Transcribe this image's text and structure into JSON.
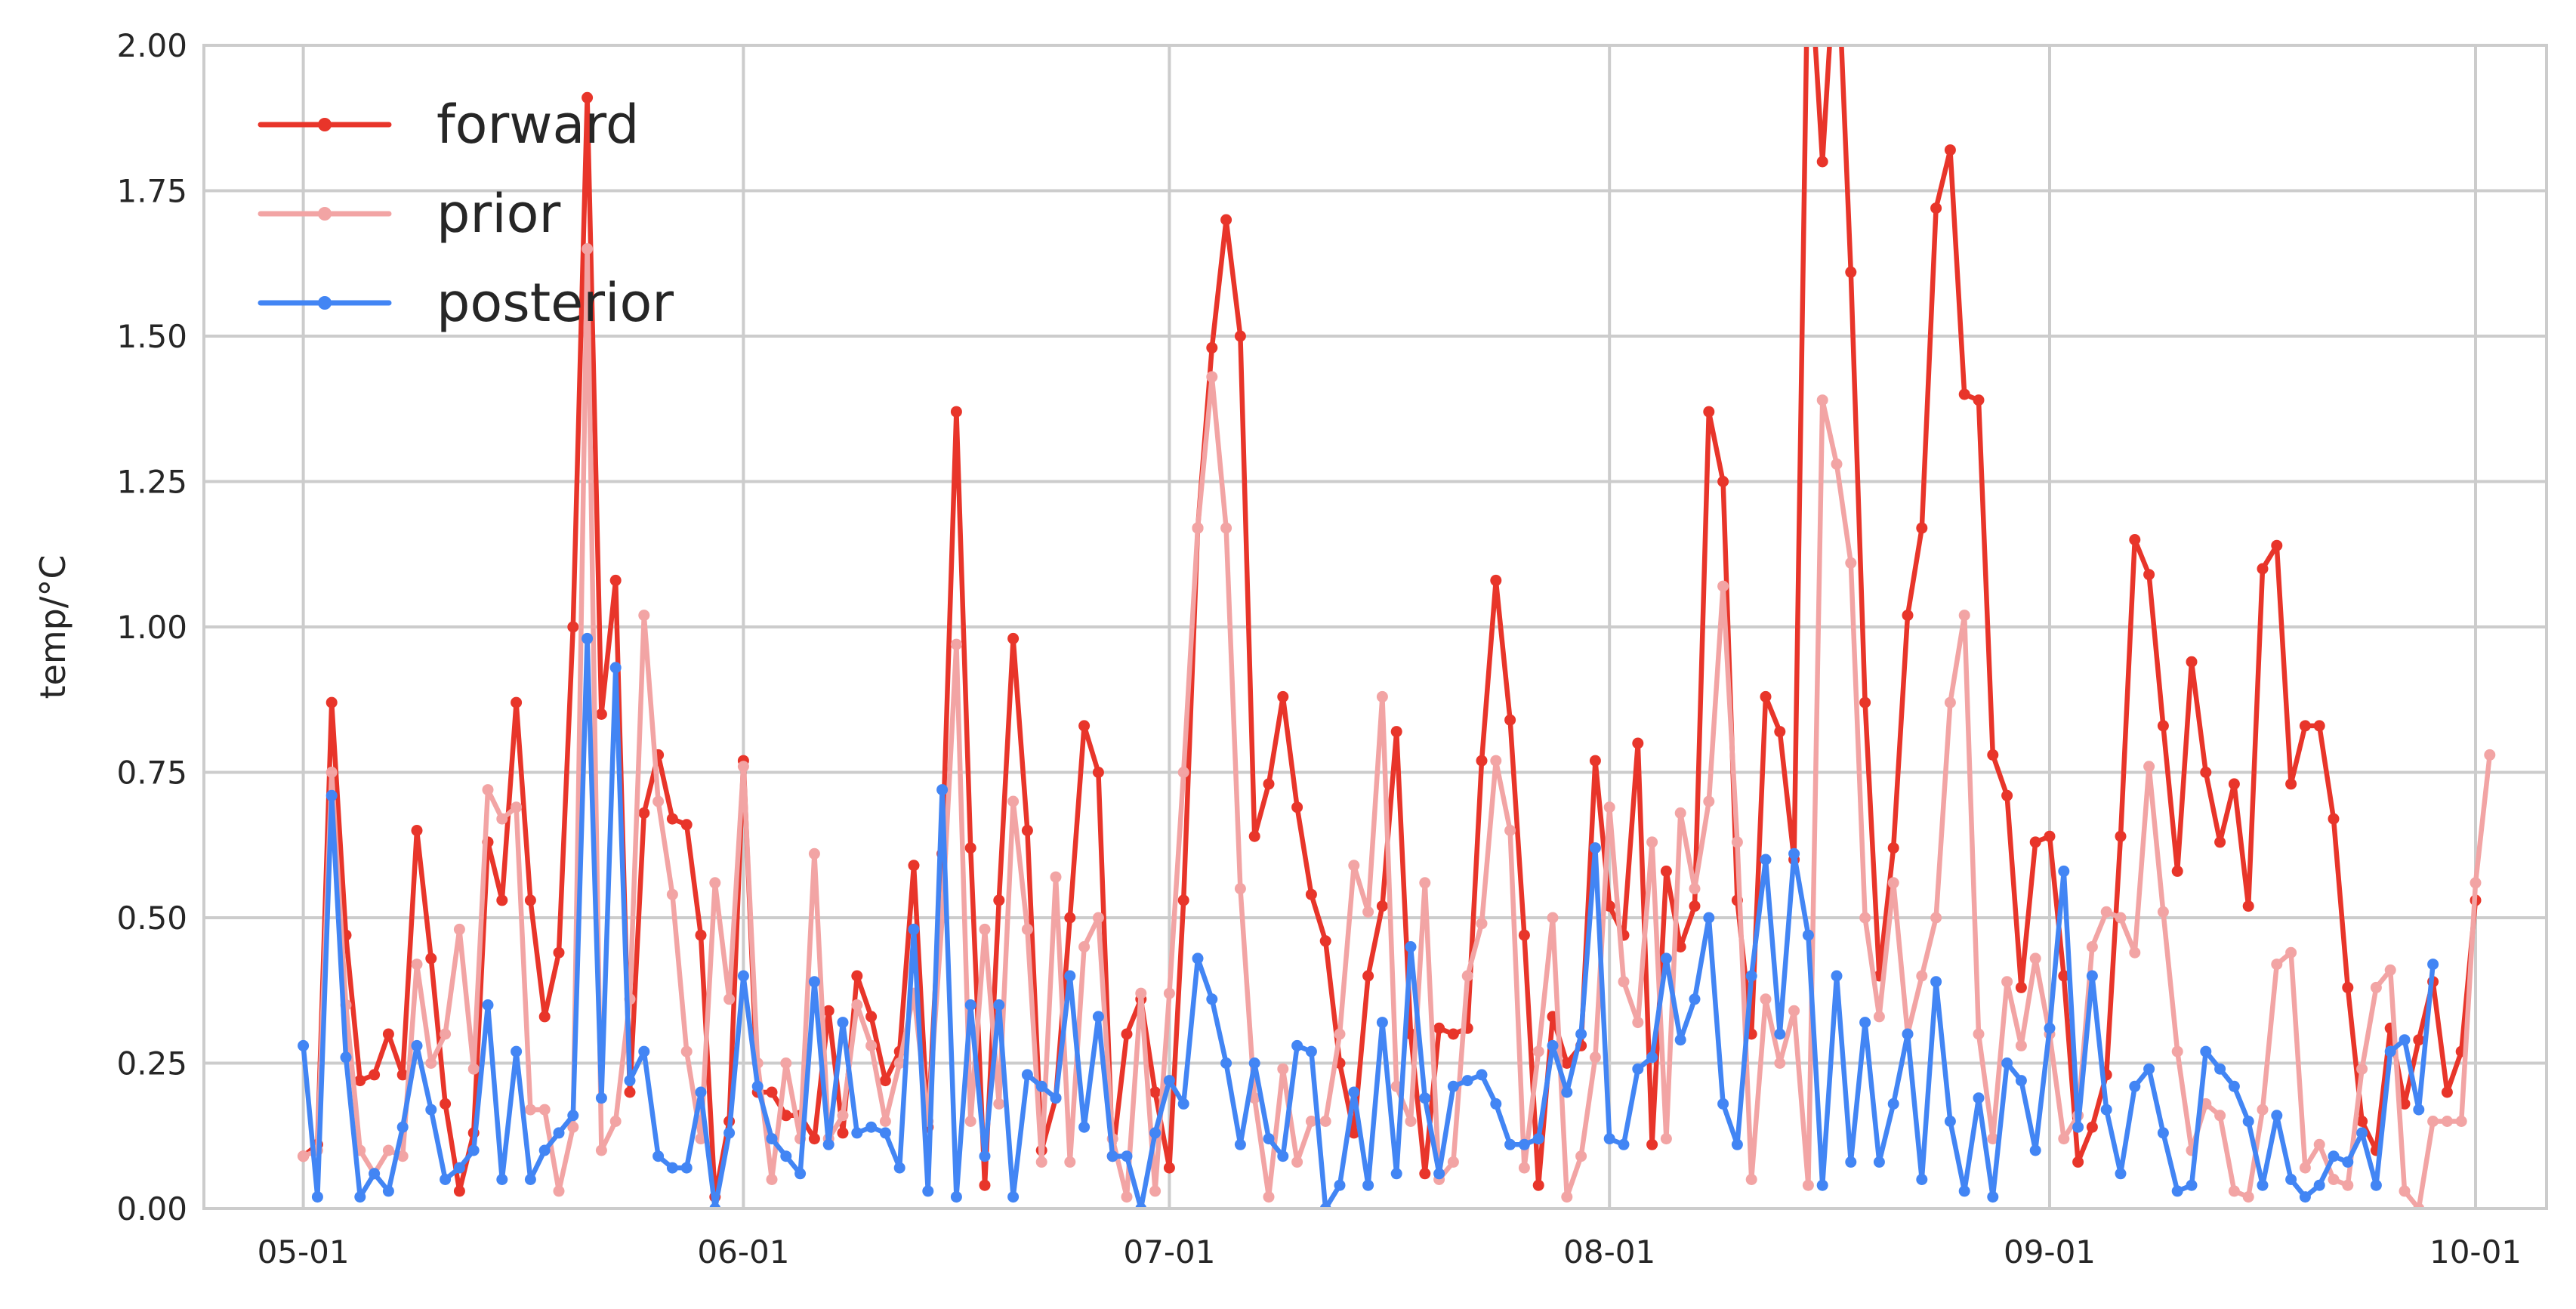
{
  "chart_data": {
    "type": "line",
    "title": "",
    "xlabel": "",
    "ylabel": "temp/°C",
    "xlim": [
      "2024-04-24",
      "2024-10-06"
    ],
    "ylim": [
      0,
      2
    ],
    "x_ticks": [
      "05-01",
      "06-01",
      "07-01",
      "08-01",
      "09-01",
      "10-01"
    ],
    "x_tick_dates": [
      "2024-05-01",
      "2024-06-01",
      "2024-07-01",
      "2024-08-01",
      "2024-09-01",
      "2024-10-01"
    ],
    "y_ticks": [
      "0.00",
      "0.25",
      "0.50",
      "0.75",
      "1.00",
      "1.25",
      "1.50",
      "1.75",
      "2.00"
    ],
    "y_tick_values": [
      0,
      0.25,
      0.5,
      0.75,
      1.0,
      1.25,
      1.5,
      1.75,
      2.0
    ],
    "grid": true,
    "legend_position": "upper-left",
    "x_start": "2024-05-01",
    "x_step_days": 1,
    "series": [
      {
        "name": "forward",
        "color": "#e8352a",
        "values": [
          0.09,
          0.11,
          0.87,
          0.47,
          0.22,
          0.23,
          0.3,
          0.23,
          0.65,
          0.43,
          0.18,
          0.03,
          0.13,
          0.63,
          0.53,
          0.87,
          0.53,
          0.33,
          0.44,
          1.0,
          1.91,
          0.85,
          1.08,
          0.2,
          0.68,
          0.78,
          0.67,
          0.66,
          0.47,
          0.02,
          0.15,
          0.77,
          0.2,
          0.2,
          0.16,
          0.16,
          0.12,
          0.34,
          0.13,
          0.4,
          0.33,
          0.22,
          0.27,
          0.59,
          0.14,
          0.61,
          1.37,
          0.62,
          0.04,
          0.53,
          0.98,
          0.65,
          0.1,
          0.19,
          0.5,
          0.83,
          0.75,
          0.09,
          0.3,
          0.36,
          0.2,
          0.07,
          0.53,
          1.17,
          1.48,
          1.7,
          1.5,
          0.64,
          0.73,
          0.88,
          0.69,
          0.54,
          0.46,
          0.25,
          0.13,
          0.4,
          0.52,
          0.82,
          0.3,
          0.06,
          0.31,
          0.3,
          0.31,
          0.77,
          1.08,
          0.84,
          0.47,
          0.04,
          0.33,
          0.25,
          0.28,
          0.77,
          0.52,
          0.47,
          0.8,
          0.11,
          0.58,
          0.45,
          0.52,
          1.37,
          1.25,
          0.53,
          0.3,
          0.88,
          0.82,
          0.6,
          2.2,
          1.8,
          2.2,
          1.61,
          0.87,
          0.4,
          0.62,
          1.02,
          1.17,
          1.72,
          1.82,
          1.4,
          1.39,
          0.78,
          0.71,
          0.38,
          0.63,
          0.64,
          0.4,
          0.08,
          0.14,
          0.23,
          0.64,
          1.15,
          1.09,
          0.83,
          0.58,
          0.94,
          0.75,
          0.63,
          0.73,
          0.52,
          1.1,
          1.14,
          0.73,
          0.83,
          0.83,
          0.67,
          0.38,
          0.15,
          0.1,
          0.31,
          0.18,
          0.29,
          0.39,
          0.2,
          0.27,
          0.53
        ]
      },
      {
        "name": "prior",
        "color": "#f2a4a4",
        "values": [
          0.09,
          0.1,
          0.75,
          0.35,
          0.1,
          0.06,
          0.1,
          0.09,
          0.42,
          0.25,
          0.3,
          0.48,
          0.24,
          0.72,
          0.67,
          0.69,
          0.17,
          0.17,
          0.03,
          0.14,
          1.65,
          0.1,
          0.15,
          0.36,
          1.02,
          0.7,
          0.54,
          0.27,
          0.12,
          0.56,
          0.36,
          0.76,
          0.25,
          0.05,
          0.25,
          0.12,
          0.61,
          0.12,
          0.16,
          0.35,
          0.28,
          0.15,
          0.25,
          0.37,
          0.15,
          0.5,
          0.97,
          0.15,
          0.48,
          0.18,
          0.7,
          0.48,
          0.08,
          0.57,
          0.08,
          0.45,
          0.5,
          0.12,
          0.02,
          0.37,
          0.03,
          0.37,
          0.75,
          1.17,
          1.43,
          1.17,
          0.55,
          0.19,
          0.02,
          0.24,
          0.08,
          0.15,
          0.15,
          0.3,
          0.59,
          0.51,
          0.88,
          0.21,
          0.15,
          0.56,
          0.05,
          0.08,
          0.4,
          0.49,
          0.77,
          0.65,
          0.07,
          0.27,
          0.5,
          0.02,
          0.09,
          0.26,
          0.69,
          0.39,
          0.32,
          0.63,
          0.12,
          0.68,
          0.55,
          0.7,
          1.07,
          0.63,
          0.05,
          0.36,
          0.25,
          0.34,
          0.04,
          1.39,
          1.28,
          1.11,
          0.5,
          0.33,
          0.56,
          0.3,
          0.4,
          0.5,
          0.87,
          1.02,
          0.3,
          0.12,
          0.39,
          0.28,
          0.43,
          0.3,
          0.12,
          0.16,
          0.45,
          0.51,
          0.5,
          0.44,
          0.76,
          0.51,
          0.27,
          0.1,
          0.18,
          0.16,
          0.03,
          0.02,
          0.17,
          0.42,
          0.44,
          0.07,
          0.11,
          0.05,
          0.04,
          0.24,
          0.38,
          0.41,
          0.03,
          0.0,
          0.15,
          0.15,
          0.15,
          0.56,
          0.78
        ]
      },
      {
        "name": "posterior",
        "color": "#4285f4",
        "values": [
          0.28,
          0.02,
          0.71,
          0.26,
          0.02,
          0.06,
          0.03,
          0.14,
          0.28,
          0.17,
          0.05,
          0.07,
          0.1,
          0.35,
          0.05,
          0.27,
          0.05,
          0.1,
          0.13,
          0.16,
          0.98,
          0.19,
          0.93,
          0.22,
          0.27,
          0.09,
          0.07,
          0.07,
          0.2,
          0.0,
          0.13,
          0.4,
          0.21,
          0.12,
          0.09,
          0.06,
          0.39,
          0.11,
          0.32,
          0.13,
          0.14,
          0.13,
          0.07,
          0.48,
          0.03,
          0.72,
          0.02,
          0.35,
          0.09,
          0.35,
          0.02,
          0.23,
          0.21,
          0.19,
          0.4,
          0.14,
          0.33,
          0.09,
          0.09,
          0.0,
          0.13,
          0.22,
          0.18,
          0.43,
          0.36,
          0.25,
          0.11,
          0.25,
          0.12,
          0.09,
          0.28,
          0.27,
          0.0,
          0.04,
          0.2,
          0.04,
          0.32,
          0.06,
          0.45,
          0.19,
          0.06,
          0.21,
          0.22,
          0.23,
          0.18,
          0.11,
          0.11,
          0.12,
          0.28,
          0.2,
          0.3,
          0.62,
          0.12,
          0.11,
          0.24,
          0.26,
          0.43,
          0.29,
          0.36,
          0.5,
          0.18,
          0.11,
          0.4,
          0.6,
          0.3,
          0.61,
          0.47,
          0.04,
          0.4,
          0.08,
          0.32,
          0.08,
          0.18,
          0.3,
          0.05,
          0.39,
          0.15,
          0.03,
          0.19,
          0.02,
          0.25,
          0.22,
          0.1,
          0.31,
          0.58,
          0.14,
          0.4,
          0.17,
          0.06,
          0.21,
          0.24,
          0.13,
          0.03,
          0.04,
          0.27,
          0.24,
          0.21,
          0.15,
          0.04,
          0.16,
          0.05,
          0.02,
          0.04,
          0.09,
          0.08,
          0.13,
          0.04,
          0.27,
          0.29,
          0.17,
          0.42
        ]
      }
    ]
  }
}
